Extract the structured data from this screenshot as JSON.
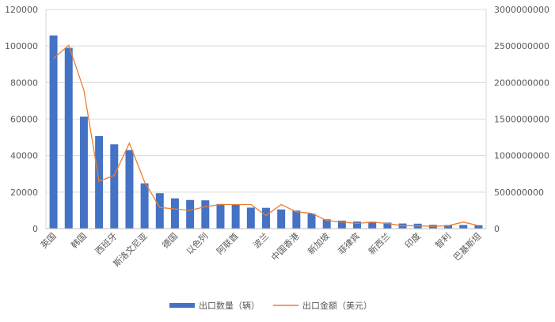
{
  "chart_data": {
    "type": "bar",
    "title": "",
    "xlabel": "",
    "ylabel": "",
    "categories": [
      "英国",
      "",
      "韩国",
      "",
      "西班牙",
      "",
      "斯洛文尼亚",
      "",
      "德国",
      "",
      "以色列",
      "",
      "阿联酋",
      "",
      "波兰",
      "",
      "中国香港",
      "",
      "新加坡",
      "",
      "菲律宾",
      "",
      "新西兰",
      "",
      "印度",
      "",
      "智利",
      "",
      "巴基斯坦"
    ],
    "ylim": [
      0,
      120000
    ],
    "y2lim": [
      0,
      3000000000
    ],
    "yticks": [
      "0",
      "20000",
      "40000",
      "60000",
      "80000",
      "100000",
      "120000"
    ],
    "y2ticks": [
      "0",
      "500000000",
      "1000000000",
      "1500000000",
      "2000000000",
      "2500000000",
      "3000000000"
    ],
    "grid": true,
    "legend_position": "bottom",
    "series": [
      {
        "name": "出口数量（辆）",
        "axis": "left",
        "kind": "bar",
        "color": "#4472C4",
        "values": [
          105800,
          99000,
          61300,
          50700,
          46200,
          43000,
          24800,
          19400,
          16600,
          15700,
          15500,
          13500,
          13300,
          11500,
          11400,
          10500,
          9900,
          8200,
          5100,
          4400,
          3900,
          3800,
          3300,
          2800,
          2700,
          2100,
          2000,
          2000,
          1900
        ]
      },
      {
        "name": "出口金额（美元）",
        "axis": "right",
        "kind": "line",
        "color": "#ED7D31",
        "values": [
          2330000000,
          2510000000,
          1900000000,
          650000000,
          730000000,
          1170000000,
          640000000,
          290000000,
          270000000,
          250000000,
          300000000,
          330000000,
          330000000,
          330000000,
          180000000,
          330000000,
          230000000,
          210000000,
          110000000,
          90000000,
          70000000,
          90000000,
          70000000,
          40000000,
          40000000,
          30000000,
          40000000,
          90000000,
          40000000
        ]
      }
    ]
  }
}
